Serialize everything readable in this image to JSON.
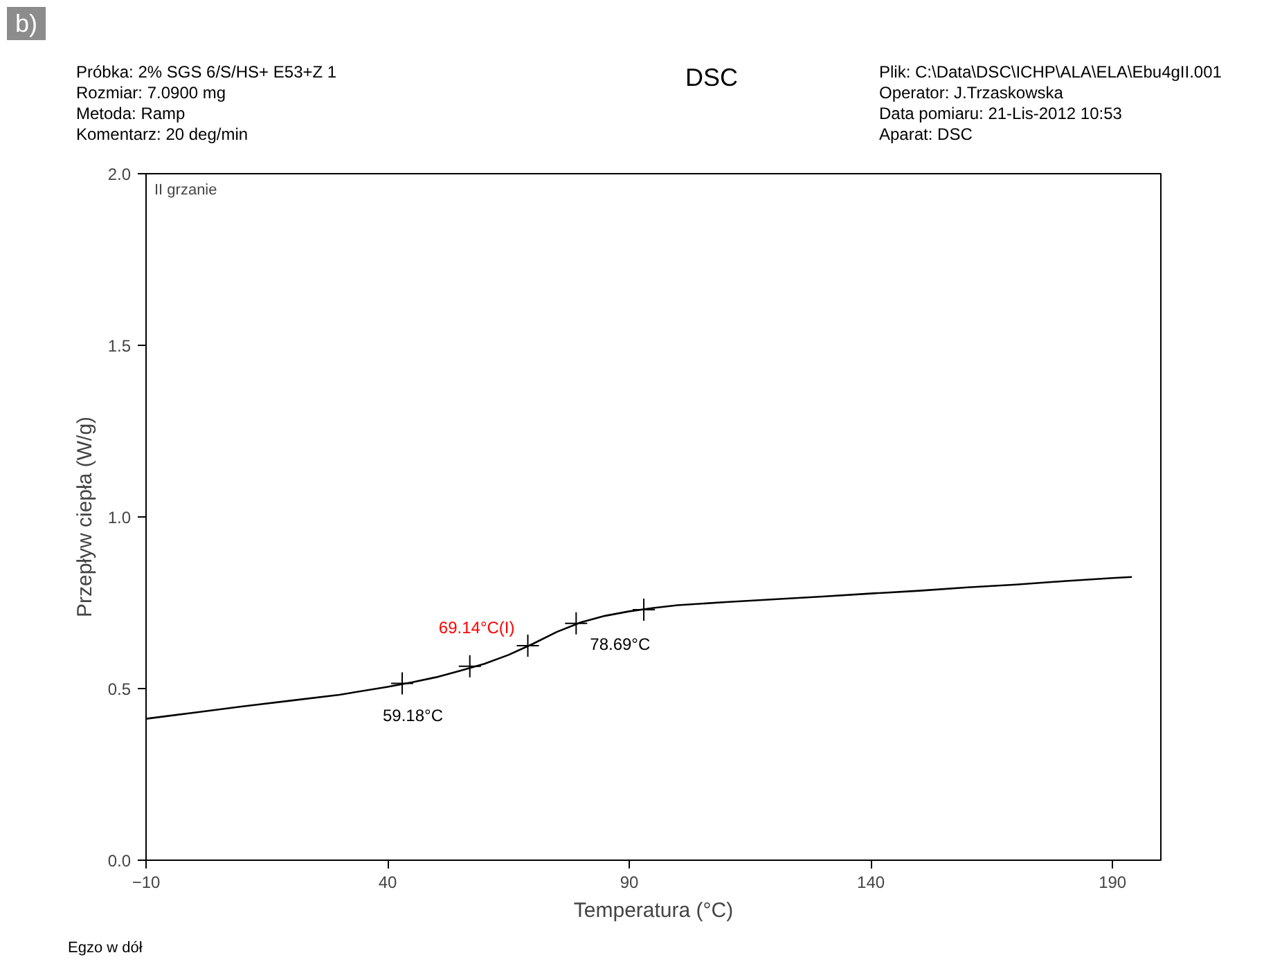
{
  "chart_data": {
    "type": "line",
    "title": "DSC",
    "xlabel": "Temperatura (°C)",
    "ylabel": "Przepływ ciepła (W/g)",
    "xlim": [
      -10,
      200
    ],
    "xticks": [
      -10,
      40,
      90,
      140,
      190
    ],
    "ylim": [
      0,
      2.0
    ],
    "yticks": [
      {
        "value": 0,
        "label": "0.0"
      },
      0.5,
      {
        "value": 1,
        "label": "1.0"
      },
      1.5,
      {
        "value": 2,
        "label": "2.0"
      }
    ],
    "grid": false,
    "series": [
      {
        "color": "#000000",
        "x": [
          -10,
          0,
          10,
          20,
          30,
          40,
          45,
          50,
          55,
          60,
          65,
          70,
          75,
          80,
          85,
          90,
          95,
          100,
          110,
          120,
          130,
          140,
          150,
          160,
          170,
          180,
          190,
          194
        ],
        "values": [
          0.412,
          0.43,
          0.448,
          0.465,
          0.482,
          0.505,
          0.518,
          0.533,
          0.552,
          0.572,
          0.598,
          0.63,
          0.665,
          0.693,
          0.712,
          0.725,
          0.735,
          0.743,
          0.752,
          0.76,
          0.768,
          0.777,
          0.785,
          0.795,
          0.803,
          0.813,
          0.822,
          0.825
        ]
      },
      {
        "type": "scatter",
        "marker": "cross",
        "color": "#000000",
        "x": [
          43,
          57,
          69,
          79,
          93
        ],
        "values": [
          0.515,
          0.565,
          0.625,
          0.69,
          0.73
        ]
      }
    ],
    "annotations": [
      "b)",
      "Próbka: 2% SGS 6/S/HS+ E53+Z 1",
      "Rozmiar:  7.0900 mg",
      "Metoda: Ramp",
      "Komentarz: 20 deg/min",
      "Plik: C:\\Data\\DSC\\ICHP\\ALA\\ELA\\Ebu4gII.001",
      "Operator: J.Trzaskowska",
      "Data pomiaru: 21-Lis-2012 10:53",
      "Aparat: DSC",
      "II grzanie",
      "Egzo w dół",
      {
        "text": "59.18°C",
        "x": 43,
        "y": 0.515
      },
      {
        "text": "69.14°C(I)",
        "x": 69.14,
        "y": 0.625
      },
      {
        "text": "78.69°C",
        "x": 79,
        "y": 0.69
      }
    ]
  }
}
